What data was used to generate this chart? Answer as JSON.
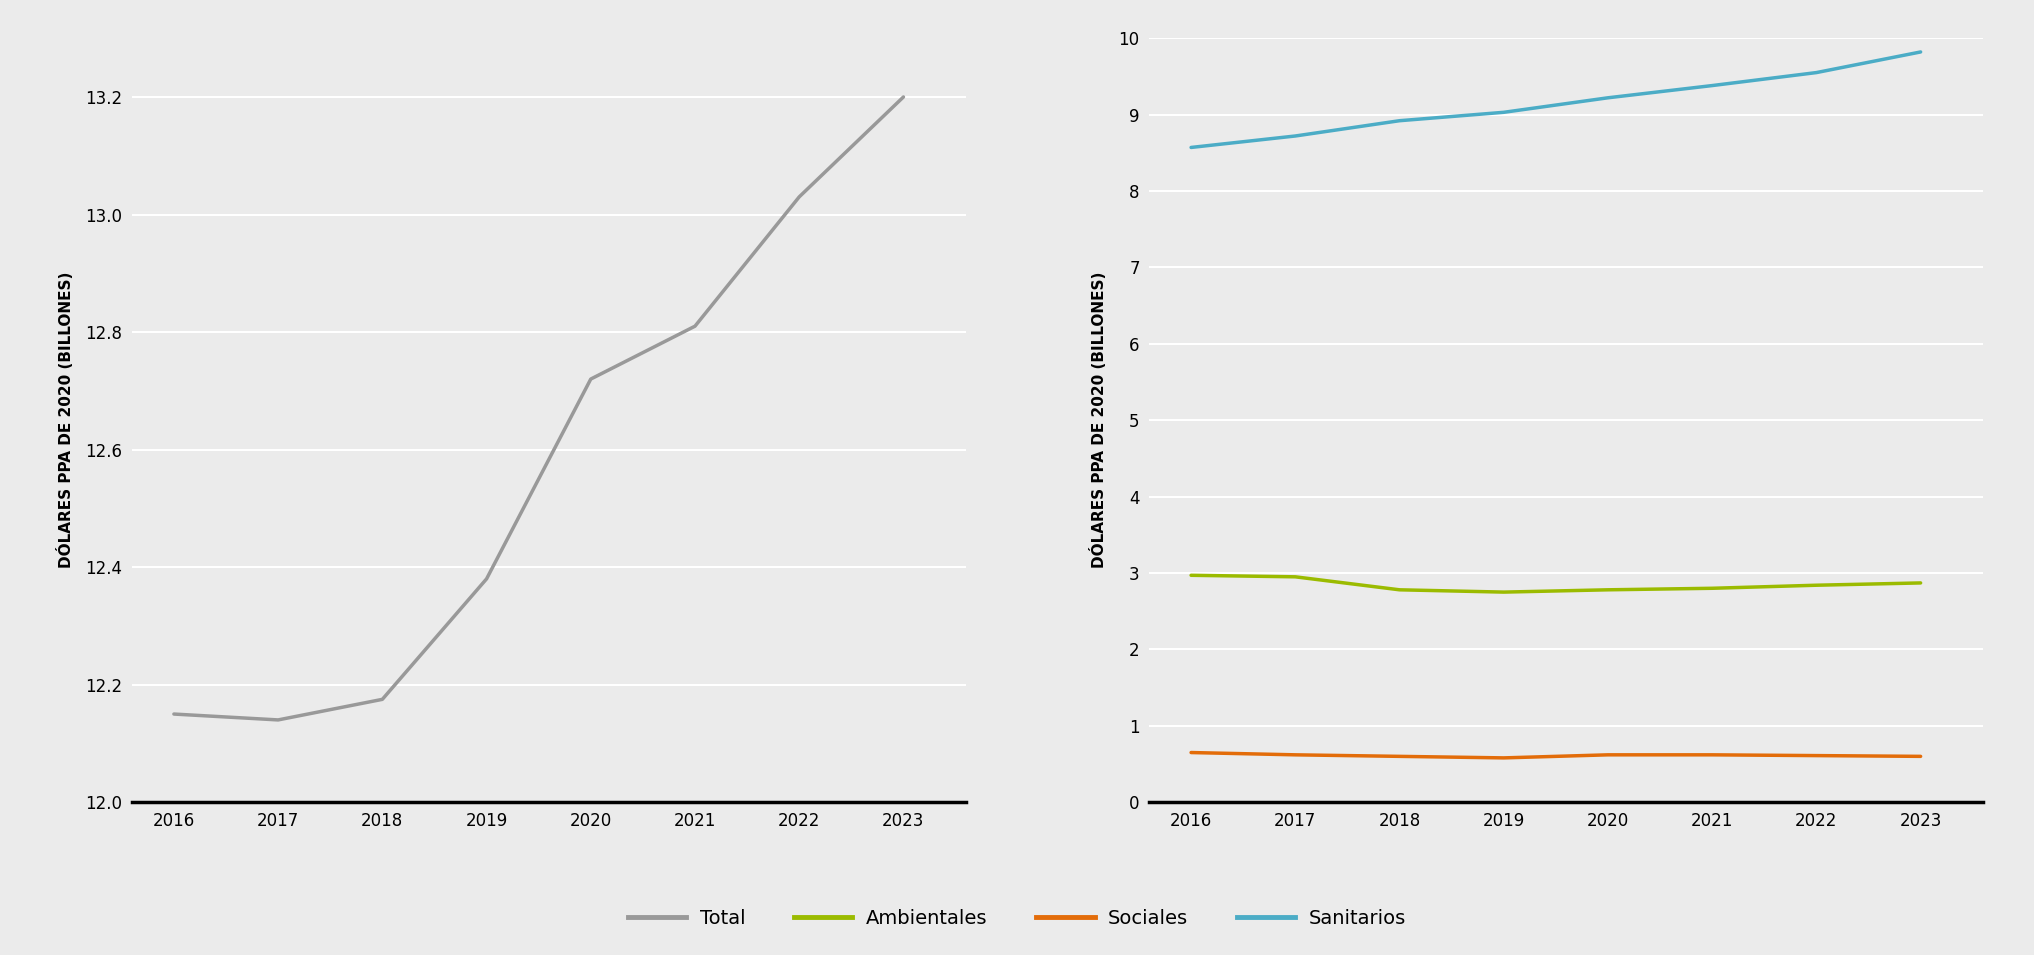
{
  "years": [
    2016,
    2017,
    2018,
    2019,
    2020,
    2021,
    2022,
    2023
  ],
  "total": [
    12.15,
    12.14,
    12.175,
    12.38,
    12.72,
    12.81,
    13.03,
    13.2
  ],
  "ambientales": [
    2.97,
    2.95,
    2.78,
    2.75,
    2.78,
    2.8,
    2.84,
    2.87
  ],
  "sociales": [
    0.65,
    0.62,
    0.6,
    0.58,
    0.62,
    0.62,
    0.61,
    0.6
  ],
  "sanitarios": [
    8.57,
    8.72,
    8.92,
    9.03,
    9.22,
    9.38,
    9.55,
    9.82
  ],
  "color_total": "#999999",
  "color_ambientales": "#9bbb00",
  "color_sociales": "#e36c09",
  "color_sanitarios": "#4bacc6",
  "ylabel": "DÓLARES PPA DE 2020 (BILLONES)",
  "left_ylim": [
    12.0,
    13.3
  ],
  "left_yticks": [
    12.0,
    12.2,
    12.4,
    12.6,
    12.8,
    13.0,
    13.2
  ],
  "right_ylim": [
    0,
    10
  ],
  "right_yticks": [
    0,
    1,
    2,
    3,
    4,
    5,
    6,
    7,
    8,
    9,
    10
  ],
  "bg_color": "#ebebeb",
  "legend_labels": [
    "Total",
    "Ambientales",
    "Sociales",
    "Sanitarios"
  ],
  "line_width": 2.5,
  "tick_fontsize": 12,
  "ylabel_fontsize": 11
}
